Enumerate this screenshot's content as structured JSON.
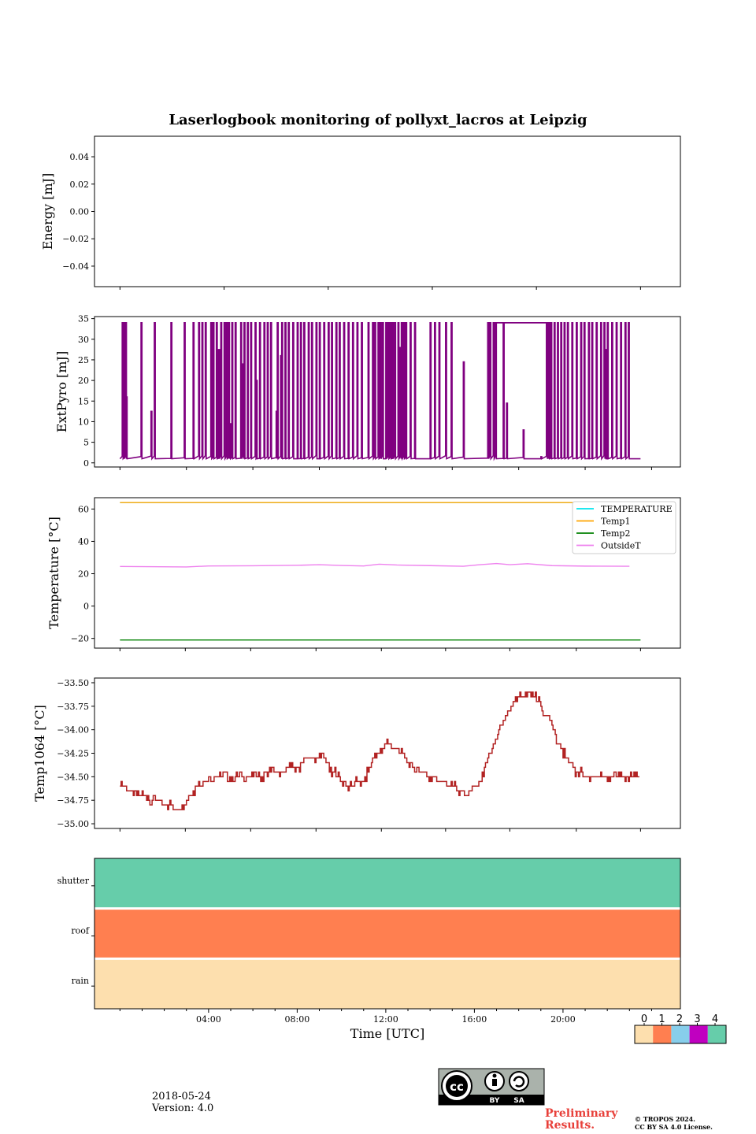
{
  "title": "Laserlogbook monitoring of pollyxt_lacros at Leipzig",
  "xlabel": "Time [UTC]",
  "x_tick_labels": [
    "04:00",
    "08:00",
    "12:00",
    "16:00",
    "20:00"
  ],
  "date": "2018-05-24",
  "version": "Version: 4.0",
  "preliminary": [
    "Preliminary",
    "Results."
  ],
  "copyright": [
    "© TROPOS 2024.",
    "CC BY SA 4.0 License."
  ],
  "license_badge": {
    "icon": "cc-by-sa-icon",
    "labels": [
      "BY",
      "SA"
    ]
  },
  "chart_data": [
    {
      "type": "line",
      "ylabel": "Energy [mJ]",
      "ylim": [
        -0.055,
        0.055
      ],
      "yticks": [
        0.04,
        0.02,
        0.0,
        -0.02,
        -0.04
      ],
      "ytick_labels": [
        "0.04",
        "0.02",
        "0.00",
        "−0.02",
        "−0.04"
      ],
      "series": []
    },
    {
      "type": "line",
      "ylabel": "ExtPyro [mJ]",
      "ylim": [
        -1,
        35.5
      ],
      "yticks": [
        0,
        5,
        10,
        15,
        20,
        25,
        30,
        35
      ],
      "ytick_labels": [
        "0",
        "5",
        "10",
        "15",
        "20",
        "25",
        "30",
        "35"
      ],
      "color": "#800080",
      "baseline": 1,
      "high": 34,
      "flat_high_segments": [
        [
          17.0,
          19.3
        ]
      ],
      "spike_times": [
        0.1,
        0.15,
        0.25,
        0.95,
        1.55,
        2.3,
        2.9,
        3.3,
        3.55,
        3.7,
        3.85,
        4.1,
        4.2,
        4.35,
        4.55,
        4.7,
        4.8,
        4.9,
        5.05,
        5.2,
        5.45,
        5.6,
        5.75,
        5.9,
        6.1,
        6.3,
        6.5,
        6.65,
        6.8,
        7.1,
        7.3,
        7.45,
        7.6,
        7.8,
        8.0,
        8.15,
        8.3,
        8.5,
        8.65,
        8.85,
        9.0,
        9.2,
        9.4,
        9.55,
        9.75,
        9.9,
        10.1,
        10.3,
        10.5,
        10.7,
        10.9,
        11.2,
        11.4,
        11.5,
        11.65,
        11.75,
        11.85,
        12.0,
        12.1,
        12.2,
        12.3,
        12.4,
        12.55,
        12.7,
        12.8,
        12.9,
        13.1,
        13.3,
        14.0,
        14.2,
        14.4,
        14.7,
        14.95,
        16.6,
        16.7,
        16.85,
        16.95,
        17.3,
        19.25,
        19.35,
        19.45,
        19.6,
        19.75,
        19.9,
        20.05,
        20.2,
        20.4,
        20.6,
        20.8,
        20.95,
        21.15,
        21.3,
        21.5,
        21.7,
        21.85,
        22.0,
        22.2,
        22.4,
        22.6,
        22.8,
        22.95
      ],
      "mid_spikes": [
        [
          0.28,
          16
        ],
        [
          1.4,
          12.5
        ],
        [
          4.45,
          27.5
        ],
        [
          4.95,
          9.5
        ],
        [
          5.55,
          24
        ],
        [
          6.15,
          20
        ],
        [
          7.05,
          12.5
        ],
        [
          7.25,
          26
        ],
        [
          12.65,
          28
        ],
        [
          15.5,
          24.5
        ],
        [
          17.45,
          14.5
        ],
        [
          18.2,
          8
        ],
        [
          19.0,
          1.5
        ],
        [
          19.3,
          28
        ],
        [
          21.9,
          27.5
        ]
      ]
    },
    {
      "type": "line",
      "ylabel": "Temperature [°C]",
      "ylim": [
        -26,
        67
      ],
      "yticks": [
        -20,
        0,
        20,
        40,
        60
      ],
      "ytick_labels": [
        "−20",
        "0",
        "20",
        "40",
        "60"
      ],
      "legend_loc": "upper right",
      "series": [
        {
          "name": "TEMPERATURE",
          "color": "#00e5ee",
          "level": 64
        },
        {
          "name": "Temp1",
          "color": "#ffa500",
          "level": 64
        },
        {
          "name": "Temp2",
          "color": "#008000",
          "level": -21
        },
        {
          "name": "OutsideT",
          "color": "#ee82ee",
          "profile": [
            [
              0,
              24.5
            ],
            [
              3,
              24.2
            ],
            [
              4,
              24.8
            ],
            [
              6,
              24.9
            ],
            [
              8,
              25.2
            ],
            [
              9,
              25.6
            ],
            [
              10,
              25.1
            ],
            [
              11,
              24.8
            ],
            [
              11.7,
              25.9
            ],
            [
              12.5,
              25.4
            ],
            [
              14,
              25.0
            ],
            [
              15.5,
              24.6
            ],
            [
              16.2,
              25.5
            ],
            [
              17,
              26.3
            ],
            [
              17.6,
              25.6
            ],
            [
              18.4,
              26.2
            ],
            [
              19.5,
              25.0
            ],
            [
              21,
              24.7
            ],
            [
              23,
              24.6
            ]
          ]
        }
      ]
    },
    {
      "type": "line",
      "ylabel": "Temp1064 [°C]",
      "ylim": [
        -35.05,
        -33.45
      ],
      "yticks": [
        -33.5,
        -33.75,
        -34.0,
        -34.25,
        -34.5,
        -34.75,
        -35.0
      ],
      "ytick_labels": [
        "−33.50",
        "−33.75",
        "−34.00",
        "−34.25",
        "−34.50",
        "−34.75",
        "−35.00"
      ],
      "color": "#b22222",
      "profile": [
        [
          0,
          -34.6
        ],
        [
          1.0,
          -34.7
        ],
        [
          2.0,
          -34.8
        ],
        [
          2.7,
          -34.85
        ],
        [
          3.2,
          -34.7
        ],
        [
          3.6,
          -34.55
        ],
        [
          4.5,
          -34.5
        ],
        [
          6.0,
          -34.5
        ],
        [
          7.0,
          -34.45
        ],
        [
          8.0,
          -34.4
        ],
        [
          8.5,
          -34.3
        ],
        [
          9.2,
          -34.3
        ],
        [
          9.6,
          -34.45
        ],
        [
          10.3,
          -34.6
        ],
        [
          11.0,
          -34.55
        ],
        [
          11.5,
          -34.3
        ],
        [
          12.0,
          -34.15
        ],
        [
          12.5,
          -34.2
        ],
        [
          13.0,
          -34.35
        ],
        [
          14.0,
          -34.5
        ],
        [
          15.0,
          -34.6
        ],
        [
          15.7,
          -34.7
        ],
        [
          16.3,
          -34.55
        ],
        [
          16.8,
          -34.2
        ],
        [
          17.3,
          -33.9
        ],
        [
          17.8,
          -33.7
        ],
        [
          18.4,
          -33.6
        ],
        [
          18.9,
          -33.7
        ],
        [
          19.4,
          -33.9
        ],
        [
          19.9,
          -34.2
        ],
        [
          20.4,
          -34.4
        ],
        [
          21.0,
          -34.5
        ],
        [
          23.0,
          -34.5
        ]
      ]
    },
    {
      "type": "heatmap",
      "rows": [
        "shutter",
        "roof",
        "rain"
      ],
      "row_values": [
        4,
        1,
        0
      ],
      "colorbar_ticks": [
        "0",
        "1",
        "2",
        "3",
        "4"
      ],
      "colorbar_colors": [
        "#fddfae",
        "#ff7f50",
        "#87ceeb",
        "#c000c0",
        "#66cdaa"
      ]
    }
  ],
  "x_range_hours": [
    -1.15,
    25.3
  ],
  "x_tick_hours": [
    4,
    8,
    12,
    16,
    20
  ]
}
